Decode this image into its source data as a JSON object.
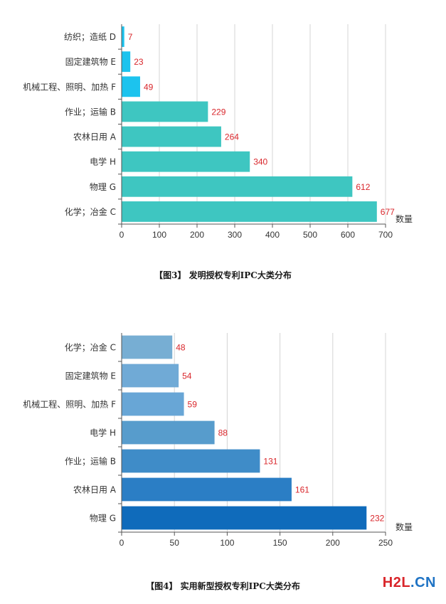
{
  "chart_data": [
    {
      "type": "bar",
      "orientation": "horizontal",
      "categories": [
        "纺织；造纸 D",
        "固定建筑物 E",
        "机械工程、照明、加热 F",
        "作业；运输 B",
        "农林日用 A",
        "电学 H",
        "物理 G",
        "化学；冶金 C"
      ],
      "values": [
        7,
        23,
        49,
        229,
        264,
        340,
        612,
        677
      ],
      "bar_colors": [
        "#1cc3ee",
        "#1cc3ee",
        "#1cc3ee",
        "#3ec6c1",
        "#3ec6c1",
        "#3ec6c1",
        "#3ec6c1",
        "#3ec6c1"
      ],
      "label_color": "#d9262b",
      "xlabel": "数量",
      "xlim": [
        0,
        700
      ],
      "xticks": [
        0,
        100,
        200,
        300,
        400,
        500,
        600,
        700
      ],
      "grid": true
    },
    {
      "type": "bar",
      "orientation": "horizontal",
      "categories": [
        "化学；冶金 C",
        "固定建筑物 E",
        "机械工程、照明、加热 F",
        "电学 H",
        "作业；运输 B",
        "农林日用 A",
        "物理 G"
      ],
      "values": [
        48,
        54,
        59,
        88,
        131,
        161,
        232
      ],
      "bar_colors": [
        "#77aed3",
        "#70aad6",
        "#68a6d6",
        "#579ccc",
        "#3f8cc8",
        "#2b7ec5",
        "#0f6bbb"
      ],
      "label_color": "#d9262b",
      "xlabel": "数量",
      "xlim": [
        0,
        250
      ],
      "xticks": [
        0,
        50,
        100,
        150,
        200,
        250
      ],
      "grid": true
    }
  ],
  "captions": {
    "fig3": "【图3】 发明授权专利IPC大类分布",
    "fig4": "【图4】 实用新型授权专利IPC大类分布"
  },
  "watermark": {
    "part1": "H2L",
    "part2": ".CN"
  }
}
